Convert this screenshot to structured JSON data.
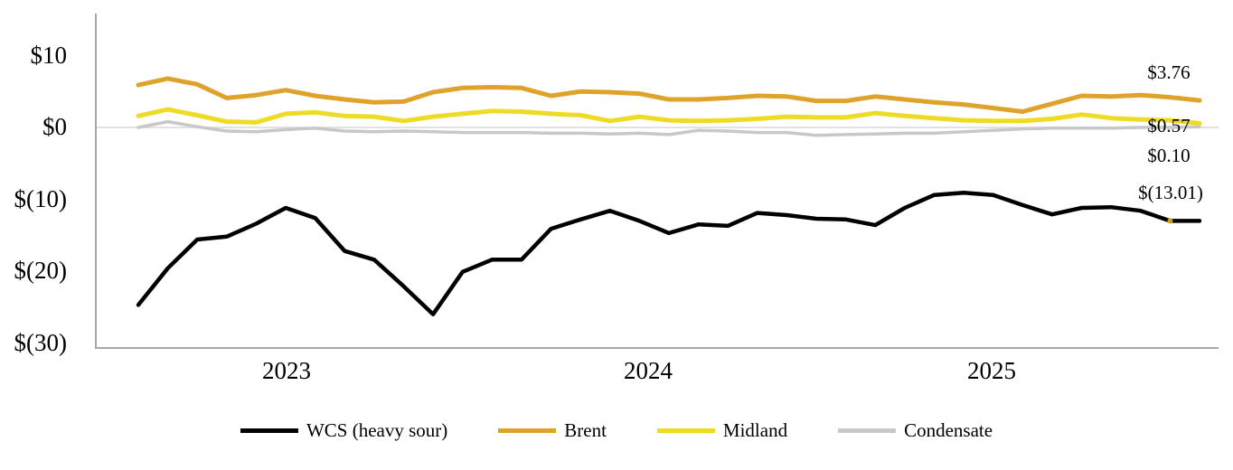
{
  "chart_data": {
    "type": "line",
    "title": "",
    "xlabel": "",
    "ylabel": "",
    "x": [
      "Aug-22",
      "Sep-22",
      "Oct-22",
      "Nov-22",
      "Dec-22",
      "Jan-23",
      "Feb-23",
      "Mar-23",
      "Apr-23",
      "May-23",
      "Jun-23",
      "Jul-23",
      "Aug-23",
      "Sep-23",
      "Oct-23",
      "Nov-23",
      "Dec-23",
      "Jan-24",
      "Feb-24",
      "Mar-24",
      "Apr-24",
      "May-24",
      "Jun-24",
      "Jul-24",
      "Aug-24",
      "Sep-24",
      "Oct-24",
      "Nov-24",
      "Dec-24",
      "Jan-25",
      "Feb-25",
      "Mar-25",
      "Apr-25",
      "May-25",
      "Jun-25",
      "Jul-25",
      "Aug-25"
    ],
    "x_axis_year_labels": [
      "2023",
      "2024",
      "2025"
    ],
    "y_tick_labels": [
      "$10",
      "$0",
      "$(10)",
      "$(20)",
      "$(30)"
    ],
    "y_tick_values": [
      10,
      0,
      -10,
      -20,
      -30
    ],
    "ylim": [
      -30.7,
      15.9
    ],
    "grid": "zero-line-only",
    "legend_position": "bottom",
    "axis_color": "#a6a6a6",
    "gridline_color": "#d9d9d9",
    "series": [
      {
        "name": "WCS (heavy sour)",
        "color": "#000000",
        "width": 4.5,
        "values": [
          -24.7,
          -19.6,
          -15.6,
          -15.2,
          -13.4,
          -11.2,
          -12.6,
          -17.2,
          -18.4,
          -22.1,
          -26.0,
          -20.1,
          -18.4,
          -18.4,
          -14.1,
          -12.8,
          -11.6,
          -13.0,
          -14.7,
          -13.5,
          -13.7,
          -11.9,
          -12.2,
          -12.7,
          -12.8,
          -13.6,
          -11.2,
          -9.4,
          -9.1,
          -9.4,
          -10.8,
          -12.1,
          -11.2,
          -11.1,
          -11.6,
          -13.01,
          -13.01
        ]
      },
      {
        "name": "Brent",
        "color": "#dfa32b",
        "width": 5,
        "values": [
          5.9,
          6.8,
          6.0,
          4.1,
          4.5,
          5.2,
          4.4,
          3.9,
          3.5,
          3.6,
          4.9,
          5.5,
          5.6,
          5.5,
          4.4,
          5.0,
          4.9,
          4.7,
          3.9,
          3.9,
          4.1,
          4.4,
          4.3,
          3.7,
          3.7,
          4.3,
          3.9,
          3.5,
          3.2,
          2.7,
          2.2,
          3.3,
          4.4,
          4.3,
          4.5,
          4.2,
          3.76
        ]
      },
      {
        "name": "Midland",
        "color": "#eddb26",
        "width": 5,
        "values": [
          1.6,
          2.5,
          1.7,
          0.8,
          0.7,
          1.9,
          2.1,
          1.6,
          1.5,
          0.9,
          1.5,
          1.9,
          2.3,
          2.2,
          1.9,
          1.7,
          0.9,
          1.5,
          1.0,
          0.9,
          1.0,
          1.2,
          1.5,
          1.4,
          1.4,
          2.0,
          1.6,
          1.3,
          1.0,
          0.9,
          0.9,
          1.2,
          1.8,
          1.3,
          1.1,
          1.0,
          0.57
        ]
      },
      {
        "name": "Condensate",
        "color": "#c8c8c8",
        "width": 3.5,
        "values": [
          0.0,
          0.8,
          0.1,
          -0.5,
          -0.6,
          -0.3,
          -0.1,
          -0.5,
          -0.6,
          -0.5,
          -0.6,
          -0.7,
          -0.7,
          -0.7,
          -0.8,
          -0.8,
          -0.9,
          -0.8,
          -1.0,
          -0.4,
          -0.5,
          -0.7,
          -0.7,
          -1.1,
          -1.0,
          -0.9,
          -0.8,
          -0.8,
          -0.6,
          -0.4,
          -0.2,
          -0.1,
          -0.1,
          -0.1,
          0.0,
          0.0,
          0.1
        ]
      }
    ],
    "end_labels": [
      {
        "text": "$3.76",
        "series": "Brent"
      },
      {
        "text": "$0.57",
        "series": "Midland"
      },
      {
        "text": "$0.10",
        "series": "Condensate"
      },
      {
        "text": "$(13.01)",
        "series": "WCS (heavy sour)"
      }
    ],
    "marker": {
      "series_index": 0,
      "point_index": 35,
      "color": "#c3a40b",
      "radius": 3
    },
    "legend_items": [
      "WCS (heavy sour)",
      "Brent",
      "Midland",
      "Condensate"
    ]
  }
}
